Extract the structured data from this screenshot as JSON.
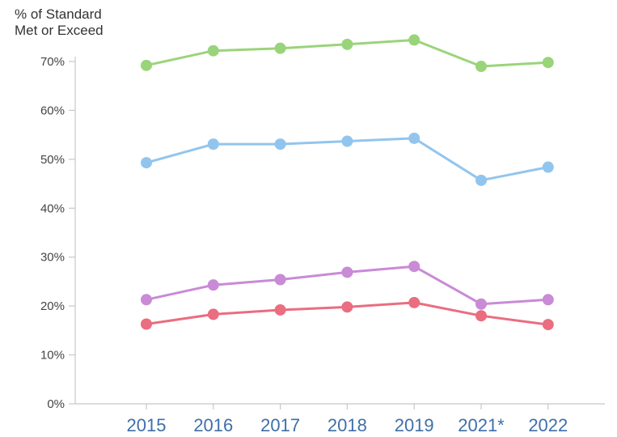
{
  "chart_data": {
    "type": "line",
    "title": "",
    "ylabel_lines": [
      "% of Standard",
      "Met or Exceed"
    ],
    "xlabel": "",
    "categories": [
      "2015",
      "2016",
      "2017",
      "2018",
      "2019",
      "2021*",
      "2022"
    ],
    "ylim": [
      0,
      70
    ],
    "yticks": [
      {
        "value": 0,
        "label": "0%"
      },
      {
        "value": 10,
        "label": "10%"
      },
      {
        "value": 20,
        "label": "20%"
      },
      {
        "value": 30,
        "label": "30%"
      },
      {
        "value": 40,
        "label": "40%"
      },
      {
        "value": 50,
        "label": "50%"
      },
      {
        "value": 60,
        "label": "60%"
      },
      {
        "value": 70,
        "label": "70%"
      }
    ],
    "grid": false,
    "legend": "none",
    "series": [
      {
        "key": "green",
        "color": "#9ad47a",
        "values": [
          69.2,
          72.2,
          72.7,
          73.5,
          74.4,
          69.0,
          69.8
        ]
      },
      {
        "key": "blue",
        "color": "#92c5ee",
        "values": [
          49.3,
          53.1,
          53.1,
          53.7,
          54.3,
          45.7,
          48.4
        ]
      },
      {
        "key": "purple",
        "color": "#c98ad6",
        "values": [
          21.3,
          24.3,
          25.4,
          26.9,
          28.1,
          20.4,
          21.3
        ]
      },
      {
        "key": "red",
        "color": "#ea6d80",
        "values": [
          16.3,
          18.3,
          19.2,
          19.8,
          20.7,
          18.0,
          16.2
        ]
      }
    ]
  }
}
